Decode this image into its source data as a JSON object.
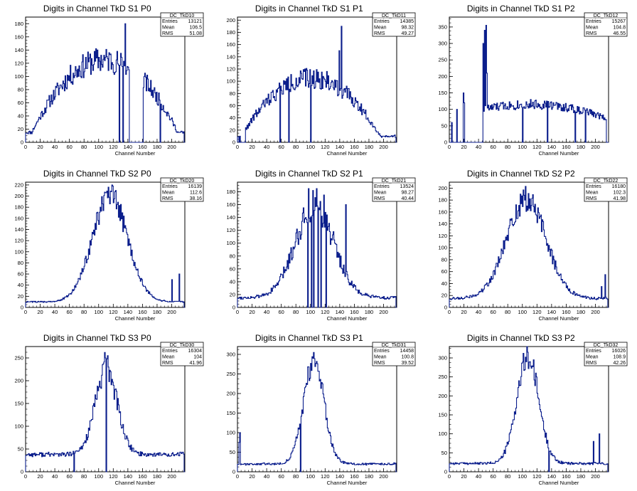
{
  "page": {
    "background": "#ffffff",
    "line_color": "#0b1e8c"
  },
  "chart_data": [
    {
      "type": "histogram",
      "title": "Digits in Channel TkD S1 P0",
      "xlabel": "Channel Number",
      "ylabel": "",
      "xlim": [
        0,
        218
      ],
      "ylim": [
        0,
        190
      ],
      "xticks": [
        0,
        20,
        40,
        60,
        80,
        100,
        120,
        140,
        160,
        180,
        200
      ],
      "yticks": [
        0,
        20,
        40,
        60,
        80,
        100,
        120,
        140,
        160,
        180
      ],
      "stats": {
        "name": "DC_TkD10",
        "entries": "13121",
        "mean": "106.5",
        "rms": "51.08"
      },
      "shape": {
        "type": "broad",
        "start": 0,
        "end": 216,
        "center": 108,
        "width": 100,
        "peak": 125,
        "base": 15,
        "noise": 0.1,
        "seed": 11
      },
      "spikes": [
        [
          136,
          180
        ],
        [
          128,
          0
        ],
        [
          133,
          0
        ],
        [
          146,
          0
        ],
        [
          160,
          0
        ],
        [
          184,
          0
        ]
      ],
      "zero_runs": [
        [
          142,
          160
        ]
      ]
    },
    {
      "type": "histogram",
      "title": "Digits in Channel TkD S1 P1",
      "xlabel": "Channel Number",
      "ylabel": "",
      "xlim": [
        0,
        218
      ],
      "ylim": [
        0,
        205
      ],
      "xticks": [
        0,
        20,
        40,
        60,
        80,
        100,
        120,
        140,
        160,
        180,
        200
      ],
      "yticks": [
        0,
        20,
        40,
        60,
        80,
        100,
        120,
        140,
        160,
        180,
        200
      ],
      "stats": {
        "name": "DC_TkD11",
        "entries": "14385",
        "mean": "98.32",
        "rms": "49.27"
      },
      "shape": {
        "type": "broad",
        "start": 0,
        "end": 216,
        "center": 100,
        "width": 95,
        "peak": 105,
        "base": 10,
        "noise": 0.1,
        "seed": 22
      },
      "spikes": [
        [
          142,
          190
        ],
        [
          139,
          150
        ],
        [
          2,
          0
        ],
        [
          10,
          0
        ],
        [
          58,
          0
        ],
        [
          70,
          0
        ],
        [
          100,
          0
        ]
      ],
      "zero_runs": [
        [
          4,
          10
        ]
      ]
    },
    {
      "type": "histogram",
      "title": "Digits in Channel TkD S1 P2",
      "xlabel": "Channel Number",
      "ylabel": "",
      "xlim": [
        0,
        218
      ],
      "ylim": [
        0,
        380
      ],
      "xticks": [
        0,
        20,
        40,
        60,
        80,
        100,
        120,
        140,
        160,
        180,
        200
      ],
      "yticks": [
        0,
        50,
        100,
        150,
        200,
        250,
        300,
        350
      ],
      "stats": {
        "name": "DC_TkD12",
        "entries": "15267",
        "mean": "104.8",
        "rms": "46.55"
      },
      "shape": {
        "type": "broad",
        "start": 46,
        "end": 214,
        "center": 110,
        "width": 110,
        "peak": 115,
        "base": 70,
        "noise": 0.08,
        "seed": 33
      },
      "spikes": [
        [
          50,
          355
        ],
        [
          48,
          340
        ],
        [
          46,
          300
        ],
        [
          51,
          210
        ],
        [
          19,
          150
        ],
        [
          20,
          120
        ],
        [
          3,
          60
        ],
        [
          10,
          100
        ],
        [
          100,
          0
        ],
        [
          134,
          0
        ],
        [
          172,
          0
        ],
        [
          186,
          0
        ]
      ],
      "zero_runs": [
        [
          12,
          18
        ],
        [
          22,
          44
        ]
      ]
    },
    {
      "type": "histogram",
      "title": "Digits in Channel TkD S2 P0",
      "xlabel": "Channel Number",
      "ylabel": "",
      "xlim": [
        0,
        218
      ],
      "ylim": [
        0,
        225
      ],
      "xticks": [
        0,
        20,
        40,
        60,
        80,
        100,
        120,
        140,
        160,
        180,
        200
      ],
      "yticks": [
        0,
        20,
        40,
        60,
        80,
        100,
        120,
        140,
        160,
        180,
        200,
        220
      ],
      "stats": {
        "name": "DC_TkD20",
        "entries": "16139",
        "mean": "112.6",
        "rms": "38.16"
      },
      "shape": {
        "type": "gauss",
        "start": 0,
        "end": 216,
        "center": 115,
        "width": 24,
        "peak": 200,
        "base": 10,
        "noise": 0.07,
        "seed": 44
      },
      "spikes": [
        [
          210,
          60
        ],
        [
          200,
          50
        ]
      ],
      "zero_runs": []
    },
    {
      "type": "histogram",
      "title": "Digits in Channel TkD S2 P1",
      "xlabel": "Channel Number",
      "ylabel": "",
      "xlim": [
        0,
        218
      ],
      "ylim": [
        0,
        195
      ],
      "xticks": [
        0,
        20,
        40,
        60,
        80,
        100,
        120,
        140,
        160,
        180,
        200
      ],
      "yticks": [
        0,
        20,
        40,
        60,
        80,
        100,
        120,
        140,
        160,
        180
      ],
      "stats": {
        "name": "DC_TkD21",
        "entries": "13524",
        "mean": "98.27",
        "rms": "40.44"
      },
      "shape": {
        "type": "gauss",
        "start": 0,
        "end": 216,
        "center": 105,
        "width": 26,
        "peak": 160,
        "base": 15,
        "noise": 0.1,
        "seed": 55
      },
      "spikes": [
        [
          108,
          185
        ],
        [
          97,
          185
        ],
        [
          113,
          165
        ],
        [
          118,
          175
        ],
        [
          148,
          160
        ],
        [
          101,
          0
        ],
        [
          104,
          0
        ],
        [
          110,
          0
        ],
        [
          114,
          0
        ],
        [
          121,
          0
        ],
        [
          96,
          0
        ]
      ],
      "zero_runs": []
    },
    {
      "type": "histogram",
      "title": "Digits in Channel TkD S2 P2",
      "xlabel": "Channel Number",
      "ylabel": "",
      "xlim": [
        0,
        218
      ],
      "ylim": [
        0,
        210
      ],
      "xticks": [
        0,
        20,
        40,
        60,
        80,
        100,
        120,
        140,
        160,
        180,
        200
      ],
      "yticks": [
        0,
        20,
        40,
        60,
        80,
        100,
        120,
        140,
        160,
        180,
        200
      ],
      "stats": {
        "name": "DC_TkD22",
        "entries": "16180",
        "mean": "102.3",
        "rms": "41.98"
      },
      "shape": {
        "type": "gauss",
        "start": 0,
        "end": 216,
        "center": 105,
        "width": 27,
        "peak": 180,
        "base": 15,
        "noise": 0.08,
        "seed": 66
      },
      "spikes": [
        [
          213,
          55
        ],
        [
          208,
          35
        ]
      ],
      "zero_runs": []
    },
    {
      "type": "histogram",
      "title": "Digits in Channel TkD S3 P0",
      "xlabel": "Channel Number",
      "ylabel": "",
      "xlim": [
        0,
        218
      ],
      "ylim": [
        0,
        275
      ],
      "xticks": [
        0,
        20,
        40,
        60,
        80,
        100,
        120,
        140,
        160,
        180,
        200
      ],
      "yticks": [
        0,
        50,
        100,
        150,
        200,
        250
      ],
      "stats": {
        "name": "DC_TkD30",
        "entries": "16304",
        "mean": "104",
        "rms": "41.96"
      },
      "shape": {
        "type": "gauss",
        "start": 0,
        "end": 216,
        "center": 110,
        "width": 15,
        "peak": 225,
        "base": 38,
        "noise": 0.08,
        "seed": 77
      },
      "spikes": [
        [
          108,
          262
        ],
        [
          112,
          255
        ],
        [
          110,
          0
        ],
        [
          66,
          0
        ]
      ],
      "zero_runs": []
    },
    {
      "type": "histogram",
      "title": "Digits in Channel TkD S3 P1",
      "xlabel": "Channel Number",
      "ylabel": "",
      "xlim": [
        0,
        218
      ],
      "ylim": [
        0,
        320
      ],
      "xticks": [
        0,
        20,
        40,
        60,
        80,
        100,
        120,
        140,
        160,
        180,
        200
      ],
      "yticks": [
        0,
        50,
        100,
        150,
        200,
        250,
        300
      ],
      "stats": {
        "name": "DC_TkD31",
        "entries": "14458",
        "mean": "100.8",
        "rms": "39.52"
      },
      "shape": {
        "type": "gauss",
        "start": 0,
        "end": 216,
        "center": 104,
        "width": 14,
        "peak": 280,
        "base": 20,
        "noise": 0.08,
        "seed": 88
      },
      "spikes": [
        [
          104,
          305
        ],
        [
          3,
          100
        ],
        [
          2,
          75
        ],
        [
          86,
          0
        ]
      ],
      "zero_runs": []
    },
    {
      "type": "histogram",
      "title": "Digits in Channel TkD S3 P2",
      "xlabel": "Channel Number",
      "ylabel": "",
      "xlim": [
        0,
        218
      ],
      "ylim": [
        0,
        330
      ],
      "xticks": [
        0,
        20,
        40,
        60,
        80,
        100,
        120,
        140,
        160,
        180,
        200
      ],
      "yticks": [
        0,
        50,
        100,
        150,
        200,
        250,
        300
      ],
      "stats": {
        "name": "DC_TkD32",
        "entries": "16026",
        "mean": "108.9",
        "rms": "42.26"
      },
      "shape": {
        "type": "gauss",
        "start": 0,
        "end": 216,
        "center": 107,
        "width": 15,
        "peak": 300,
        "base": 22,
        "noise": 0.08,
        "seed": 99
      },
      "spikes": [
        [
          107,
          315
        ],
        [
          205,
          100
        ],
        [
          197,
          80
        ],
        [
          136,
          0
        ]
      ],
      "zero_runs": []
    }
  ],
  "stat_labels": {
    "entries": "Entries",
    "mean": "Mean",
    "rms": "RMS"
  }
}
